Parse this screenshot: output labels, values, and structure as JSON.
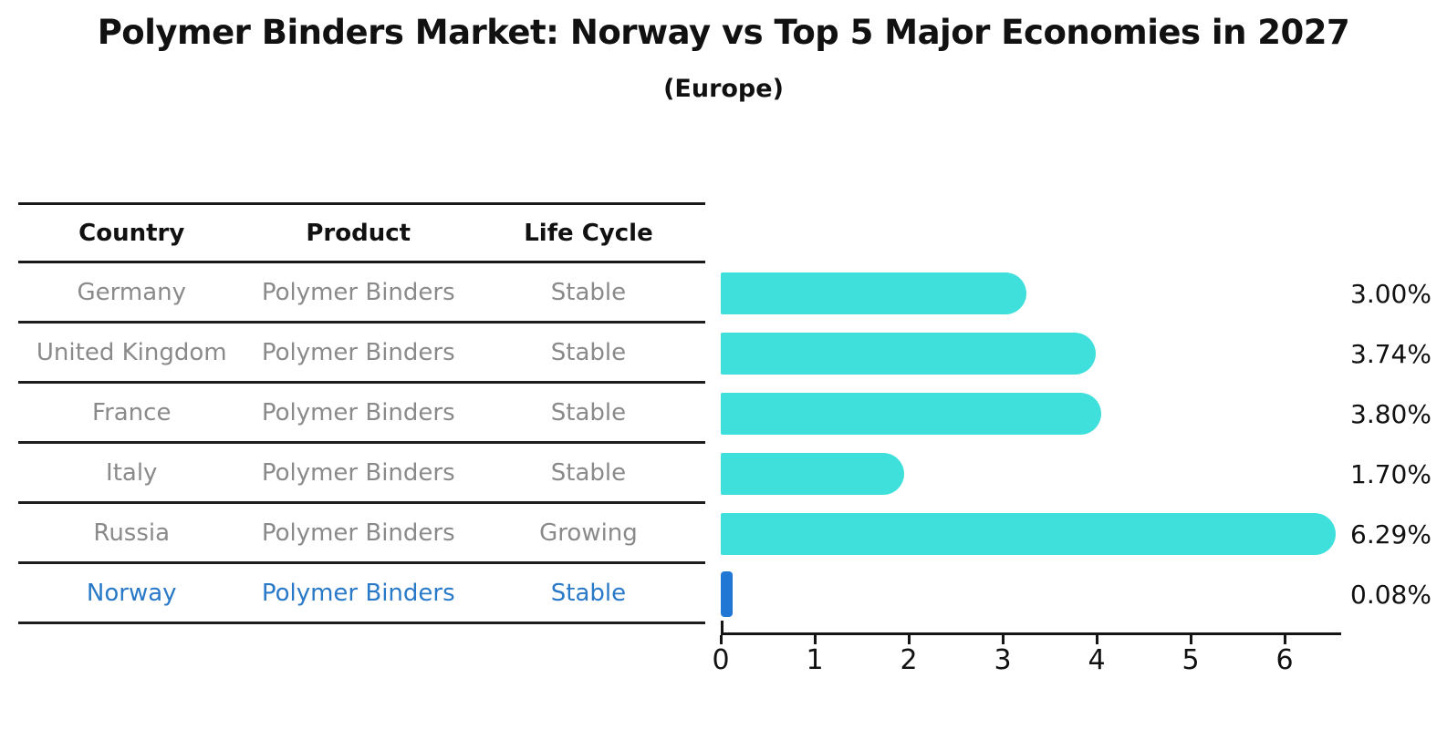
{
  "title": "Polymer Binders Market: Norway vs Top 5 Major Economies in 2027",
  "subtitle": "(Europe)",
  "table": {
    "headers": [
      "Country",
      "Product",
      "Life Cycle"
    ],
    "rows": [
      {
        "country": "Germany",
        "product": "Polymer Binders",
        "life_cycle": "Stable"
      },
      {
        "country": "United Kingdom",
        "product": "Polymer Binders",
        "life_cycle": "Stable"
      },
      {
        "country": "France",
        "product": "Polymer Binders",
        "life_cycle": "Stable"
      },
      {
        "country": "Italy",
        "product": "Polymer Binders",
        "life_cycle": "Stable"
      },
      {
        "country": "Russia",
        "product": "Polymer Binders",
        "life_cycle": "Growing"
      },
      {
        "country": "Norway",
        "product": "Polymer Binders",
        "life_cycle": "Stable"
      }
    ]
  },
  "chart_data": {
    "type": "bar",
    "orientation": "horizontal",
    "title": "Polymer Binders Market: Norway vs Top 5 Major Economies in 2027",
    "subtitle": "(Europe)",
    "categories": [
      "Germany",
      "United Kingdom",
      "France",
      "Italy",
      "Russia",
      "Norway"
    ],
    "values": [
      3.0,
      3.74,
      3.8,
      1.7,
      6.29,
      0.08
    ],
    "value_labels": [
      "3.00%",
      "3.74%",
      "3.80%",
      "1.70%",
      "6.29%",
      "0.08%"
    ],
    "xticks": [
      0,
      1,
      2,
      3,
      4,
      5,
      6
    ],
    "xlim": [
      0,
      6.6
    ],
    "grid": false,
    "legend": false,
    "highlight_index": 5,
    "colors": {
      "bar": "#3fe0dc",
      "highlight_bar": "#2178d4",
      "highlight_text": "#2979c9",
      "row_text": "#8a8a8a",
      "axis": "#151515"
    }
  }
}
